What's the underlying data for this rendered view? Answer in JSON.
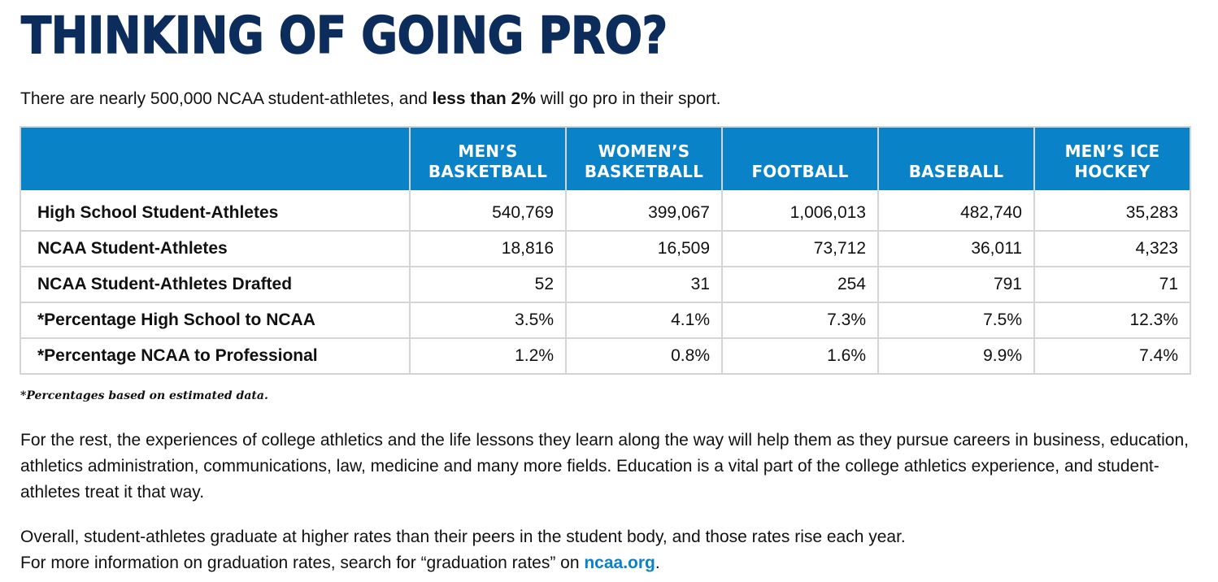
{
  "headline": "THINKING OF GOING PRO?",
  "intro": {
    "before": "There are nearly 500,000 NCAA student-athletes, and ",
    "bold": "less than 2%",
    "after": " will go pro in their sport."
  },
  "table": {
    "columns": [
      {
        "line1": "MEN’S",
        "line2": "BASKETBALL"
      },
      {
        "line1": "WOMEN’S",
        "line2": "BASKETBALL"
      },
      {
        "line1": "",
        "line2": "FOOTBALL"
      },
      {
        "line1": "",
        "line2": "BASEBALL"
      },
      {
        "line1": "MEN’S ICE",
        "line2": "HOCKEY"
      }
    ],
    "rows": [
      {
        "label": "High School Student-Athletes",
        "values": [
          "540,769",
          "399,067",
          "1,006,013",
          "482,740",
          "35,283"
        ]
      },
      {
        "label": "NCAA Student-Athletes",
        "values": [
          "18,816",
          "16,509",
          "73,712",
          "36,011",
          "4,323"
        ]
      },
      {
        "label": "NCAA Student-Athletes Drafted",
        "values": [
          "52",
          "31",
          "254",
          "791",
          "71"
        ]
      },
      {
        "label": "*Percentage High School to NCAA",
        "values": [
          "3.5%",
          "4.1%",
          "7.3%",
          "7.5%",
          "12.3%"
        ]
      },
      {
        "label": "*Percentage NCAA to Professional",
        "values": [
          "1.2%",
          "0.8%",
          "1.6%",
          "9.9%",
          "7.4%"
        ]
      }
    ]
  },
  "footnote": "*Percentages based on estimated data.",
  "paragraph1": "For the rest, the experiences of college athletics and the life lessons they learn along the way will help them as they pursue careers in business, education, athletics administration, communications, law, medicine and many more fields. Education is a vital part of the college athletics experience, and student-athletes treat it that way.",
  "paragraph2": {
    "line1": "Overall, student-athletes graduate at higher rates than their peers in the student body, and those rates rise each year.",
    "line2_before": "For more information on graduation rates, search for “graduation rates” on ",
    "link": "ncaa.org",
    "line2_after": "."
  },
  "colors": {
    "headline": "#0c2d5c",
    "header_bg": "#0a82c8",
    "link": "#0a82c8",
    "grid": "#d4d4d4"
  }
}
